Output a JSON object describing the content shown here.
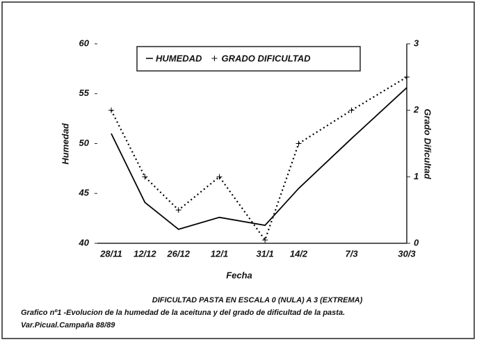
{
  "chart_data": {
    "type": "line",
    "categories": [
      "28/11",
      "12/12",
      "26/12",
      "12/1",
      "31/1",
      "14/2",
      "7/3",
      "30/3"
    ],
    "series": [
      {
        "name": "HUMEDAD",
        "color": "#000000",
        "style": "solid",
        "values": [
          51,
          44.1,
          41.4,
          42.6,
          41.8,
          45.5,
          50.5,
          55.6
        ]
      },
      {
        "name": "GRADO DIFICULTAD",
        "color": "#000000",
        "style": "dotted",
        "marker": "plus",
        "axis": "y2",
        "values": [
          2,
          1,
          0.5,
          1,
          0.05,
          1.5,
          2,
          2.5
        ]
      }
    ],
    "xlabel": "Fecha",
    "ylabel": "Humedad",
    "y2label": "Grado Dificultad",
    "ylim": [
      40,
      60
    ],
    "yticks": [
      40,
      45,
      50,
      55,
      60
    ],
    "y2lim": [
      0,
      3
    ],
    "y2ticks": [
      0,
      1,
      2,
      3
    ],
    "captions": [
      "DIFICULTAD PASTA EN ESCALA 0 (NULA) A 3 (EXTREMA)",
      "Grafico nº1 -Evolucion de la humedad de la aceituna y del grado de dificultad de la pasta.",
      "Var.Picual.Campaña 88/89"
    ]
  }
}
